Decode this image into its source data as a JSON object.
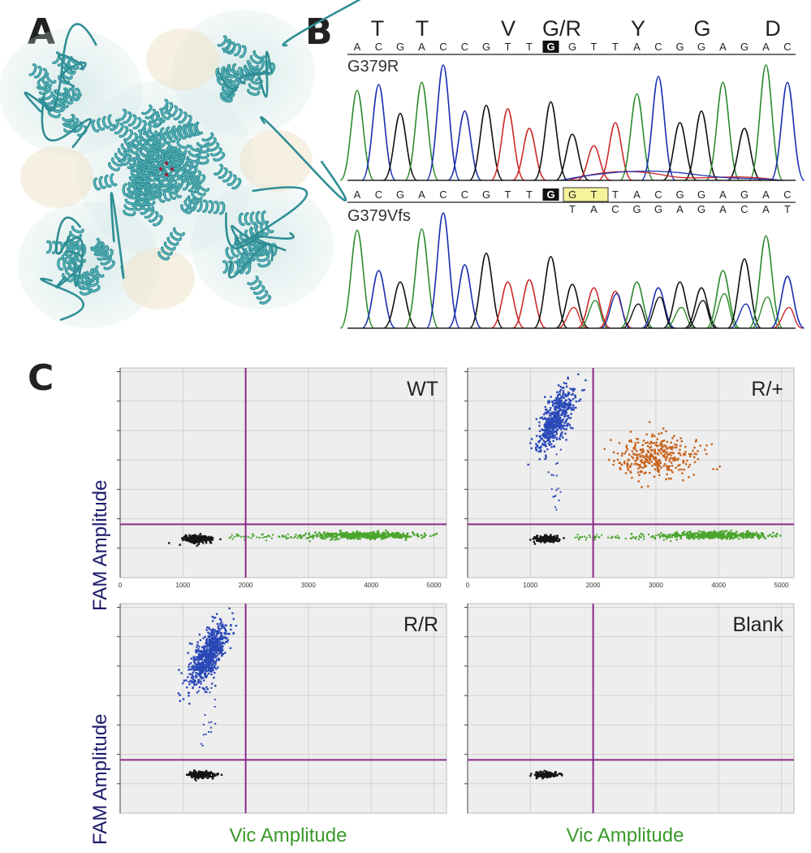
{
  "figure": {
    "panel_labels": {
      "a": "A",
      "b": "B",
      "c": "C"
    },
    "panel_a": {
      "description_icon": "protein-structure-tetramer-icon"
    },
    "panel_b": {
      "amino_acids": [
        "T",
        "T",
        "V",
        "G/R",
        "Y",
        "G",
        "D"
      ],
      "trace1": {
        "label": "G379R",
        "bases": [
          "A",
          "C",
          "G",
          "A",
          "C",
          "C",
          "G",
          "T",
          "T",
          "G",
          "G",
          "T",
          "T",
          "A",
          "C",
          "G",
          "G",
          "A",
          "G",
          "A",
          "C"
        ],
        "highlight_index": 9
      },
      "trace2": {
        "label": "G379Vfs",
        "bases": [
          "A",
          "C",
          "G",
          "A",
          "C",
          "C",
          "G",
          "T",
          "T",
          "G",
          "G",
          "T",
          "T",
          "A",
          "C",
          "G",
          "G",
          "A",
          "G",
          "A",
          "C"
        ],
        "highlight_index": 9,
        "boxed_indices": [
          10,
          11
        ],
        "shifted_bases": [
          "T",
          "A",
          "C",
          "G",
          "G",
          "A",
          "G",
          "A",
          "C",
          "A",
          "T"
        ]
      },
      "colors": {
        "A": "#2e8b2e",
        "C": "#1a2fb0",
        "G": "#111111",
        "T": "#cc2a2a"
      }
    },
    "panel_c": {
      "y_axis_label": "FAM Amplitude",
      "x_axis_label": "Vic Amplitude",
      "x_ticks": [
        "0",
        "1000",
        "2000",
        "3000",
        "4000",
        "5000"
      ],
      "plots": [
        {
          "name": "WT",
          "title": "WT"
        },
        {
          "name": "R/+",
          "title": "R/+"
        },
        {
          "name": "R/R",
          "title": "R/R"
        },
        {
          "name": "Blank",
          "title": "Blank"
        }
      ],
      "colors": {
        "blue": "#2a48b8",
        "orange": "#c8621a",
        "green": "#4aa52c",
        "black": "#151515",
        "threshold": "#8a2a8a"
      }
    }
  },
  "chart_data": [
    {
      "type": "scatter",
      "title": "WT",
      "xlabel": "Vic Amplitude",
      "ylabel": "FAM Amplitude",
      "xlim": [
        0,
        5200
      ],
      "clusters": [
        {
          "name": "negative",
          "color": "black",
          "center": [
            1250,
            1050
          ],
          "count": 280
        },
        {
          "name": "vic-positive",
          "color": "green",
          "center": [
            3900,
            1150
          ],
          "count": 420
        }
      ],
      "thresholds": {
        "x": 2000,
        "y": 1450
      }
    },
    {
      "type": "scatter",
      "title": "R/+",
      "xlabel": "Vic Amplitude",
      "ylabel": "FAM Amplitude",
      "xlim": [
        0,
        5200
      ],
      "clusters": [
        {
          "name": "fam-positive",
          "color": "blue",
          "center": [
            1400,
            4300
          ],
          "count": 520
        },
        {
          "name": "double-positive",
          "color": "orange",
          "center": [
            3050,
            3300
          ],
          "count": 340
        },
        {
          "name": "vic-positive",
          "color": "green",
          "center": [
            3950,
            1150
          ],
          "count": 380
        },
        {
          "name": "negative",
          "color": "black",
          "center": [
            1250,
            1050
          ],
          "count": 160
        }
      ],
      "thresholds": {
        "x": 2000,
        "y": 1450
      }
    },
    {
      "type": "scatter",
      "title": "R/R",
      "xlabel": "Vic Amplitude",
      "ylabel": "FAM Amplitude",
      "xlim": [
        0,
        5200
      ],
      "clusters": [
        {
          "name": "fam-positive",
          "color": "blue",
          "center": [
            1400,
            4300
          ],
          "count": 680
        },
        {
          "name": "negative",
          "color": "black",
          "center": [
            1300,
            1050
          ],
          "count": 200
        }
      ],
      "thresholds": {
        "x": 2000,
        "y": 1450
      }
    },
    {
      "type": "scatter",
      "title": "Blank",
      "xlabel": "Vic Amplitude",
      "ylabel": "FAM Amplitude",
      "xlim": [
        0,
        5200
      ],
      "clusters": [
        {
          "name": "negative",
          "color": "black",
          "center": [
            1250,
            1050
          ],
          "count": 120
        }
      ],
      "thresholds": {
        "x": 2000,
        "y": 1450
      }
    }
  ]
}
